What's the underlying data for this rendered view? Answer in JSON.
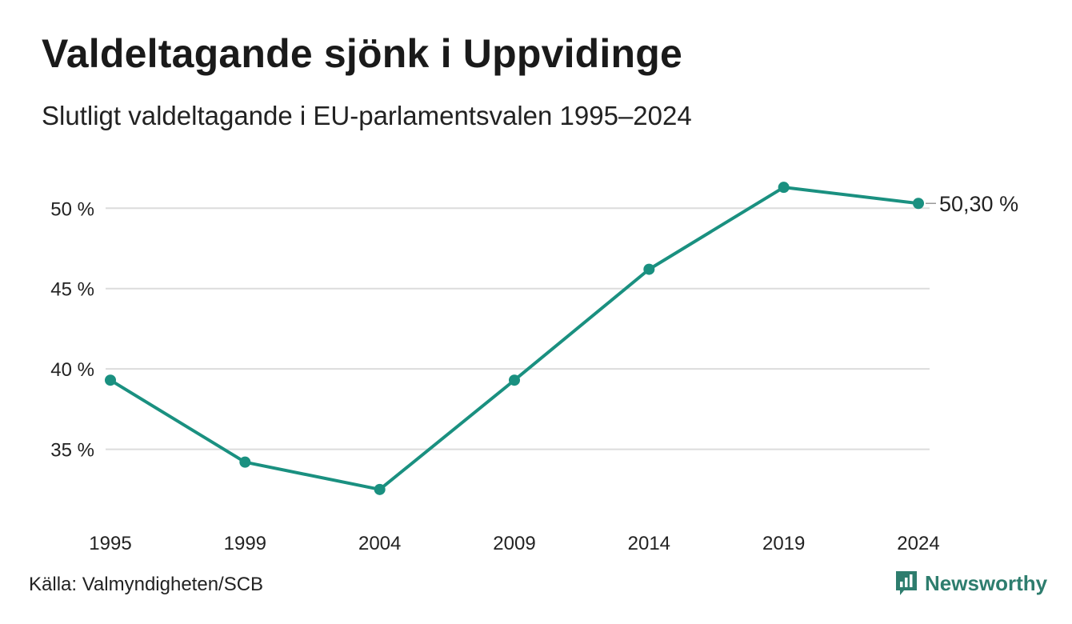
{
  "title": "Valdeltagande sjönk i Uppvidinge",
  "subtitle": "Slutligt valdeltagande i EU-parlamentsvalen 1995–2024",
  "source": "Källa: Valmyndigheten/SCB",
  "brand": "Newsworthy",
  "colors": {
    "line": "#1a9080",
    "grid": "#dcdcdc",
    "text": "#222222",
    "brand": "#2e7d6e"
  },
  "chart_data": {
    "type": "line",
    "title": "Valdeltagande sjönk i Uppvidinge",
    "subtitle": "Slutligt valdeltagande i EU-parlamentsvalen 1995–2024",
    "x": [
      "1995",
      "1999",
      "2004",
      "2009",
      "2014",
      "2019",
      "2024"
    ],
    "series": [
      {
        "values": [
          39.3,
          34.2,
          32.5,
          39.3,
          46.2,
          51.3,
          50.3
        ]
      }
    ],
    "yticks": [
      35,
      40,
      45,
      50
    ],
    "ytick_labels": [
      "35 %",
      "40 %",
      "45 %",
      "50 %"
    ],
    "ylim": [
      30.7,
      53
    ],
    "grid": true,
    "end_label": "50,30 %"
  }
}
